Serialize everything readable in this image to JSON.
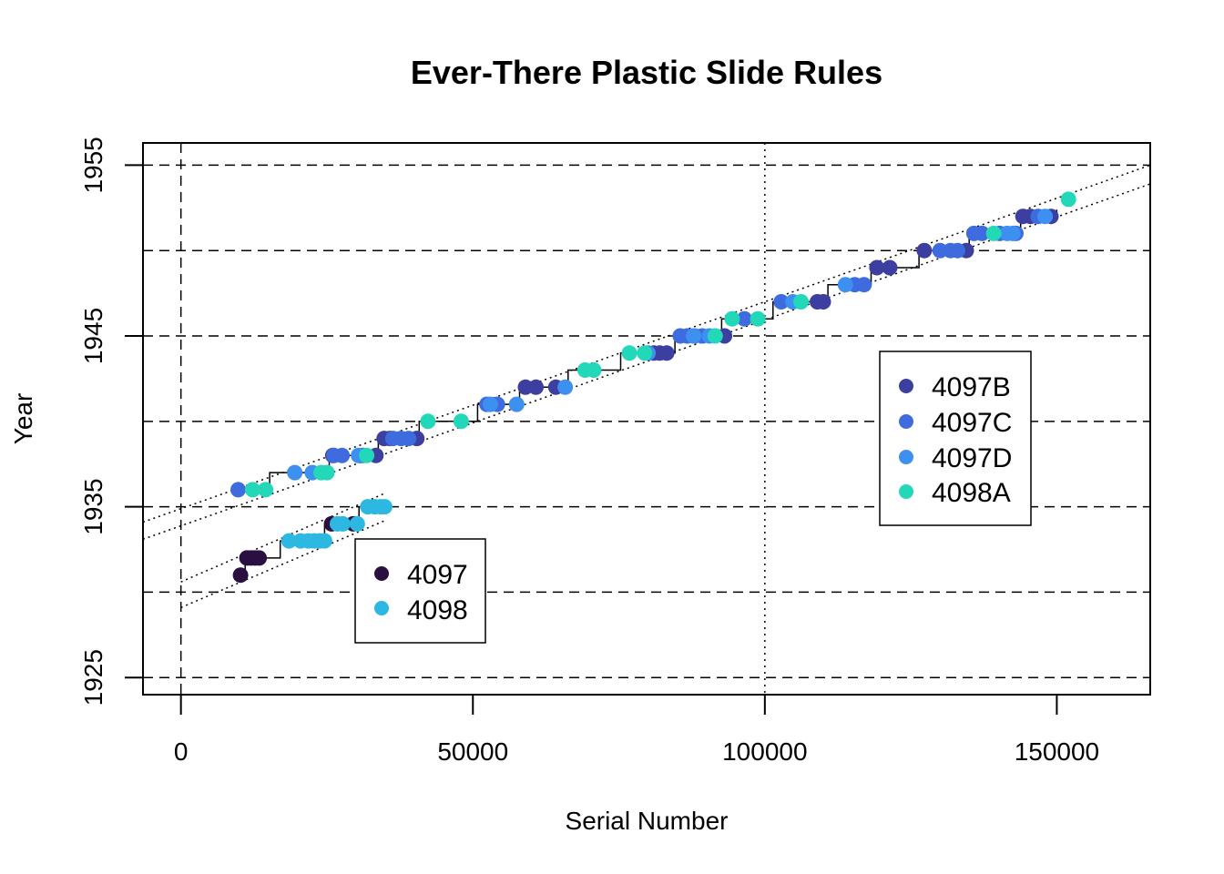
{
  "chart_data": {
    "type": "scatter",
    "title": "Ever-There Plastic Slide Rules",
    "xlabel": "Serial Number",
    "ylabel": "Year",
    "xlim": [
      -6500,
      166000
    ],
    "ylim": [
      1924,
      1956.3
    ],
    "x_ticks": [
      0,
      50000,
      100000,
      150000
    ],
    "x_tick_labels": [
      "0",
      "50000",
      "100000",
      "150000"
    ],
    "y_ticks": [
      1925,
      1935,
      1945,
      1955
    ],
    "y_tick_labels": [
      "1925",
      "1935",
      "1945",
      "1955"
    ],
    "h_dashed_lines": [
      1925,
      1930,
      1935,
      1940,
      1945,
      1950,
      1955
    ],
    "v_dashed_lines": [
      0
    ],
    "v_dotted_lines": [
      100000
    ],
    "legends": [
      {
        "position": "bottom-left-center",
        "entries": [
          "4097",
          "4098"
        ]
      },
      {
        "position": "right-center",
        "entries": [
          "4097B",
          "4097C",
          "4097D",
          "4098A"
        ]
      }
    ],
    "series": [
      {
        "name": "4097",
        "color": "#2a1040",
        "points": [
          [
            10200,
            1931
          ],
          [
            11300,
            1932
          ],
          [
            12000,
            1932
          ],
          [
            12700,
            1932
          ],
          [
            13400,
            1932
          ],
          [
            25800,
            1934
          ],
          [
            29500,
            1934
          ]
        ]
      },
      {
        "name": "4098",
        "color": "#2db8e2",
        "points": [
          [
            18500,
            1933
          ],
          [
            20500,
            1933
          ],
          [
            21800,
            1933
          ],
          [
            22800,
            1933
          ],
          [
            23800,
            1933
          ],
          [
            24600,
            1933
          ],
          [
            26800,
            1934
          ],
          [
            27700,
            1934
          ],
          [
            30200,
            1934
          ],
          [
            32000,
            1935
          ],
          [
            33200,
            1935
          ],
          [
            34200,
            1935
          ],
          [
            34900,
            1935
          ]
        ]
      },
      {
        "name": "4097B",
        "color": "#3c3fa0",
        "points": [
          [
            26000,
            1938
          ],
          [
            33400,
            1938
          ],
          [
            34800,
            1939
          ],
          [
            35800,
            1939
          ],
          [
            40400,
            1939
          ],
          [
            59000,
            1942
          ],
          [
            60800,
            1942
          ],
          [
            64200,
            1942
          ],
          [
            81000,
            1944
          ],
          [
            82000,
            1944
          ],
          [
            83200,
            1944
          ],
          [
            93100,
            1945
          ],
          [
            109000,
            1947
          ],
          [
            110000,
            1947
          ],
          [
            119200,
            1949
          ],
          [
            121400,
            1949
          ],
          [
            127300,
            1950
          ],
          [
            134500,
            1950
          ],
          [
            144200,
            1952
          ],
          [
            145500,
            1952
          ],
          [
            149000,
            1952
          ]
        ]
      },
      {
        "name": "4097C",
        "color": "#3e6cdf",
        "points": [
          [
            9800,
            1936
          ],
          [
            26200,
            1938
          ],
          [
            27600,
            1938
          ],
          [
            31100,
            1938
          ],
          [
            36300,
            1939
          ],
          [
            37700,
            1939
          ],
          [
            39000,
            1939
          ],
          [
            52400,
            1941
          ],
          [
            54200,
            1941
          ],
          [
            85500,
            1945
          ],
          [
            86700,
            1945
          ],
          [
            88000,
            1945
          ],
          [
            89300,
            1945
          ],
          [
            96500,
            1946
          ],
          [
            102800,
            1947
          ],
          [
            115400,
            1948
          ],
          [
            117000,
            1948
          ],
          [
            130000,
            1950
          ],
          [
            131800,
            1950
          ],
          [
            133000,
            1950
          ],
          [
            135800,
            1951
          ],
          [
            137200,
            1951
          ],
          [
            140200,
            1951
          ],
          [
            143000,
            1951
          ],
          [
            146800,
            1952
          ]
        ]
      },
      {
        "name": "4097D",
        "color": "#3d8ff0",
        "points": [
          [
            19500,
            1937
          ],
          [
            22500,
            1937
          ],
          [
            30400,
            1938
          ],
          [
            53000,
            1941
          ],
          [
            57500,
            1941
          ],
          [
            65800,
            1942
          ],
          [
            80000,
            1944
          ],
          [
            87800,
            1945
          ],
          [
            90500,
            1945
          ],
          [
            104800,
            1947
          ],
          [
            113800,
            1948
          ],
          [
            141500,
            1951
          ],
          [
            142500,
            1951
          ],
          [
            148000,
            1952
          ]
        ]
      },
      {
        "name": "4098A",
        "color": "#22d8b8",
        "points": [
          [
            12300,
            1936
          ],
          [
            14500,
            1936
          ],
          [
            24000,
            1937
          ],
          [
            25000,
            1937
          ],
          [
            31800,
            1938
          ],
          [
            42300,
            1940
          ],
          [
            48000,
            1940
          ],
          [
            69200,
            1943
          ],
          [
            70700,
            1943
          ],
          [
            76800,
            1944
          ],
          [
            79400,
            1944
          ],
          [
            91500,
            1945
          ],
          [
            94400,
            1946
          ],
          [
            98800,
            1946
          ],
          [
            106200,
            1947
          ],
          [
            139200,
            1951
          ],
          [
            152000,
            1953
          ]
        ]
      }
    ],
    "step_lines": [
      [
        [
          10200,
          1931
        ],
        [
          11000,
          1931
        ],
        [
          11000,
          1932
        ],
        [
          17000,
          1932
        ],
        [
          17000,
          1933
        ],
        [
          24600,
          1933
        ],
        [
          24600,
          1934
        ],
        [
          30500,
          1934
        ],
        [
          30500,
          1935
        ],
        [
          35000,
          1935
        ]
      ],
      [
        [
          9800,
          1936
        ],
        [
          15200,
          1936
        ],
        [
          15200,
          1937
        ],
        [
          25400,
          1937
        ],
        [
          25400,
          1938
        ],
        [
          33800,
          1938
        ],
        [
          33800,
          1939
        ],
        [
          40800,
          1939
        ],
        [
          40800,
          1940
        ],
        [
          50800,
          1940
        ],
        [
          50800,
          1941
        ],
        [
          58000,
          1941
        ],
        [
          58000,
          1942
        ],
        [
          66300,
          1942
        ],
        [
          66300,
          1943
        ],
        [
          75300,
          1943
        ],
        [
          75300,
          1944
        ],
        [
          84600,
          1944
        ],
        [
          84600,
          1945
        ],
        [
          92600,
          1945
        ],
        [
          92600,
          1946
        ],
        [
          101400,
          1946
        ],
        [
          101400,
          1947
        ],
        [
          110800,
          1947
        ],
        [
          110800,
          1948
        ],
        [
          118200,
          1948
        ],
        [
          118200,
          1949
        ],
        [
          126400,
          1949
        ],
        [
          126400,
          1950
        ],
        [
          135000,
          1950
        ],
        [
          135000,
          1951
        ],
        [
          143800,
          1951
        ],
        [
          143800,
          1952
        ],
        [
          150000,
          1952
        ],
        [
          150000,
          1952.4
        ]
      ]
    ],
    "dotted_fit_lines": [
      {
        "x": [
          0,
          35000
        ],
        "y": [
          1930.6,
          1935.8
        ]
      },
      {
        "x": [
          0,
          35000
        ],
        "y": [
          1929.1,
          1934.2
        ]
      },
      {
        "x": [
          -6500,
          166000
        ],
        "y": [
          1934.1,
          1955.0
        ]
      },
      {
        "x": [
          -6500,
          166000
        ],
        "y": [
          1933.1,
          1953.9
        ]
      }
    ]
  }
}
